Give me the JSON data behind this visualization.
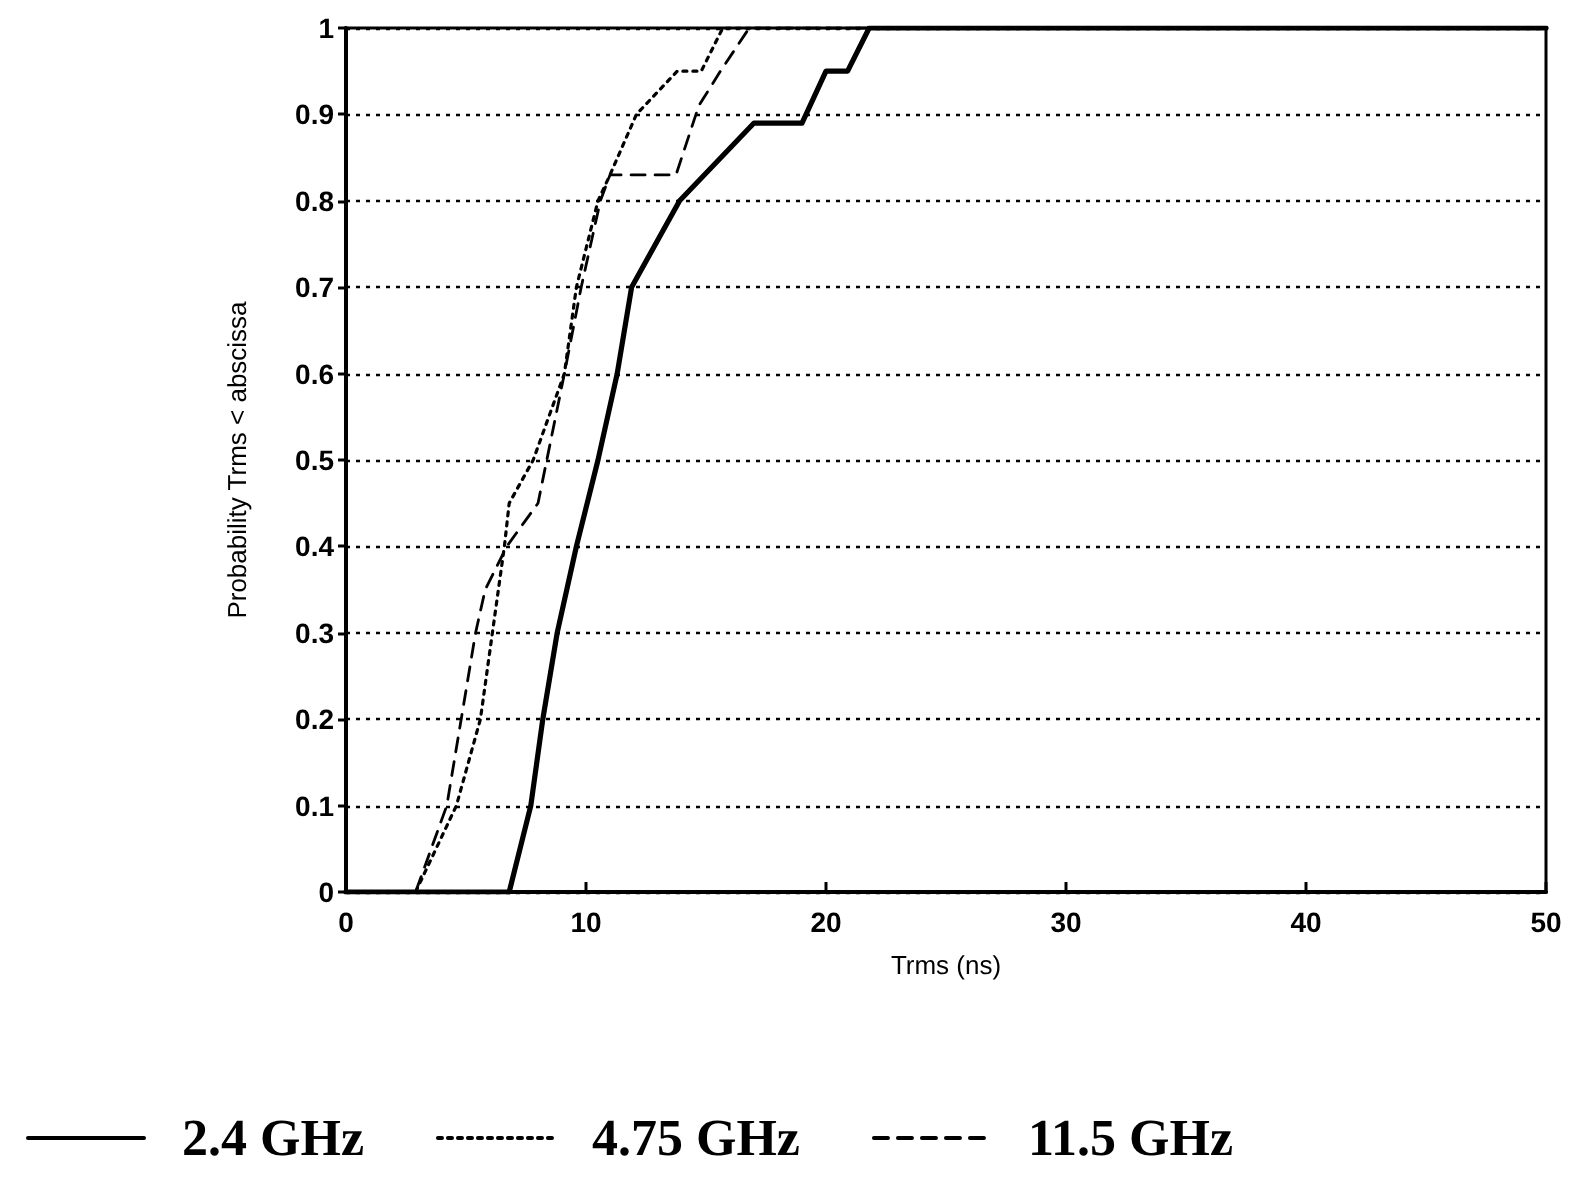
{
  "chart_data": {
    "type": "line",
    "xlabel": "Trms (ns)",
    "ylabel": "Probability Trms < abscissa",
    "series": [
      {
        "name": "2.4 GHz",
        "color": "#000000",
        "line_style": "solid",
        "x": [
          0,
          6.8,
          7.7,
          8.2,
          8.8,
          9.6,
          10.5,
          11.3,
          11.9,
          13.9,
          17.0,
          19.0,
          20.0,
          20.9,
          21.8,
          50
        ],
        "values": [
          0,
          0,
          0.1,
          0.2,
          0.3,
          0.4,
          0.5,
          0.6,
          0.7,
          0.8,
          0.89,
          0.89,
          0.95,
          0.95,
          1,
          1
        ]
      },
      {
        "name": "4.75 GHz",
        "color": "#000000",
        "line_style": "dotted",
        "x": [
          0,
          2.9,
          4.6,
          5.6,
          6.1,
          6.6,
          6.8,
          7.8,
          9.1,
          9.6,
          10.5,
          11.0,
          12.1,
          13.8,
          14.8,
          15.7,
          50
        ],
        "values": [
          0,
          0,
          0.1,
          0.2,
          0.3,
          0.4,
          0.45,
          0.5,
          0.6,
          0.7,
          0.8,
          0.83,
          0.9,
          0.95,
          0.95,
          1,
          1
        ]
      },
      {
        "name": "11.5 GHz",
        "color": "#000000",
        "line_style": "dashed",
        "x": [
          0,
          2.9,
          4.2,
          4.8,
          5.4,
          5.8,
          6.7,
          8.0,
          9.1,
          9.8,
          10.6,
          11.0,
          13.75,
          14.7,
          15.6,
          16.8,
          50
        ],
        "values": [
          0,
          0,
          0.1,
          0.2,
          0.3,
          0.35,
          0.4,
          0.45,
          0.6,
          0.7,
          0.8,
          0.83,
          0.83,
          0.91,
          0.95,
          1,
          1
        ]
      }
    ],
    "xlim": [
      0,
      50
    ],
    "xticks": [
      0,
      10,
      20,
      30,
      40,
      50
    ],
    "ylim": [
      0,
      1
    ],
    "yticks": [
      0,
      0.1,
      0.2,
      0.3,
      0.4,
      0.5,
      0.6,
      0.7,
      0.8,
      0.9,
      1
    ],
    "grid": "y",
    "legend": "bottom left",
    "marker": "none"
  }
}
